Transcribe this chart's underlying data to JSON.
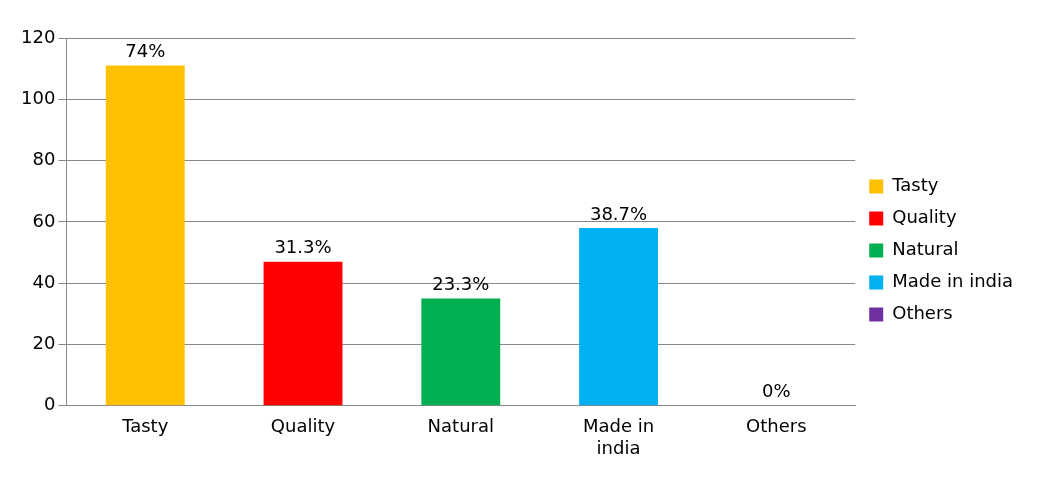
{
  "chart_data": {
    "type": "bar",
    "categories": [
      "Tasty",
      "Quality",
      "Natural",
      "Made in india",
      "Others"
    ],
    "series": [
      {
        "name": "Tasty",
        "color": "#ffc000",
        "values": [
          111,
          null,
          null,
          null,
          null
        ]
      },
      {
        "name": "Quality",
        "color": "#ff0000",
        "values": [
          null,
          47,
          null,
          null,
          null
        ]
      },
      {
        "name": "Natural",
        "color": "#00b050",
        "values": [
          null,
          null,
          35,
          null,
          null
        ]
      },
      {
        "name": "Made in india",
        "color": "#00b0f0",
        "values": [
          null,
          null,
          null,
          58,
          null
        ]
      },
      {
        "name": "Others",
        "color": "#7030a0",
        "values": [
          null,
          null,
          null,
          null,
          0
        ]
      }
    ],
    "annotations": [
      {
        "text": "74%",
        "x": "Tasty",
        "y": 111
      },
      {
        "text": "31.3%",
        "x": "Quality",
        "y": 47
      },
      {
        "text": "23.3%",
        "x": "Natural",
        "y": 35
      },
      {
        "text": "38.7%",
        "x": "Made in india",
        "y": 58
      },
      {
        "text": "0%",
        "x": "Others",
        "y": 0
      }
    ],
    "ylim": [
      0,
      120
    ],
    "yticks": [
      0,
      20,
      40,
      60,
      80,
      100,
      120
    ],
    "grid": "y",
    "legend": "right"
  }
}
